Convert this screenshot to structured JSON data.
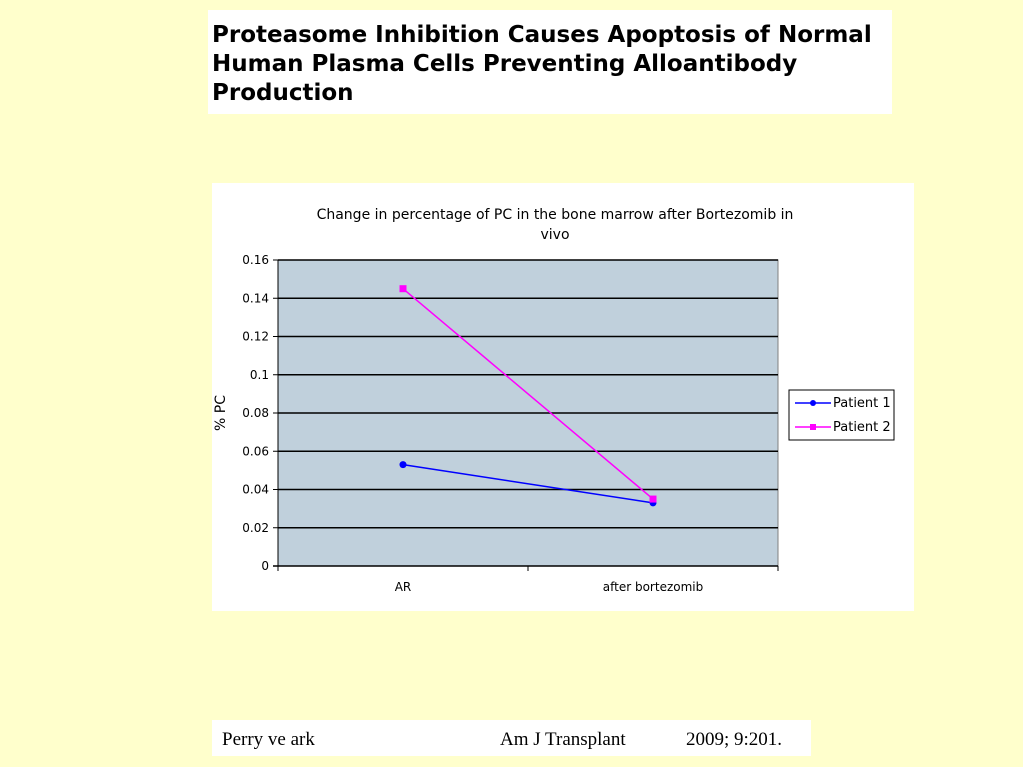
{
  "slide_title": {
    "lines": [
      "Proteasome Inhibition Causes Apoptosis of Normal",
      "Human Plasma Cells Preventing Alloantibody",
      "Production"
    ]
  },
  "chart_data": {
    "type": "line",
    "title_lines": [
      "Change in percentage of PC in the bone marrow after Bortezomib in",
      "vivo"
    ],
    "xlabel": "",
    "ylabel": "% PC",
    "categories": [
      "AR",
      "after bortezomib"
    ],
    "series": [
      {
        "name": "Patient 1",
        "values": [
          0.053,
          0.033
        ],
        "color": "#0000FF",
        "marker": "circle"
      },
      {
        "name": "Patient 2",
        "values": [
          0.145,
          0.035
        ],
        "color": "#FF00FF",
        "marker": "square"
      }
    ],
    "ylim": [
      0,
      0.16
    ],
    "yticks": [
      "0.16",
      "0.14",
      "0.12",
      "0.1",
      "0.08",
      "0.06",
      "0.04",
      "0.02",
      "0"
    ],
    "plot_background": "#C0D0DC",
    "grid": true,
    "legend_position": "right"
  },
  "footer": {
    "authors": "Perry ve ark",
    "journal": "Am J Transplant",
    "citation": "2009; 9:201."
  }
}
